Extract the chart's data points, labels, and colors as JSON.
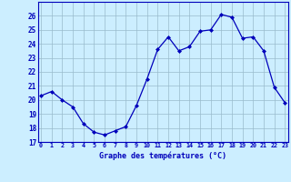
{
  "hours": [
    0,
    1,
    2,
    3,
    4,
    5,
    6,
    7,
    8,
    9,
    10,
    11,
    12,
    13,
    14,
    15,
    16,
    17,
    18,
    19,
    20,
    21,
    22,
    23
  ],
  "temperatures": [
    20.3,
    20.6,
    20.0,
    19.5,
    18.3,
    17.7,
    17.5,
    17.8,
    18.1,
    19.6,
    21.5,
    23.6,
    24.5,
    23.5,
    23.8,
    24.9,
    25.0,
    26.1,
    25.9,
    24.4,
    24.5,
    23.5,
    20.9,
    19.8
  ],
  "line_color": "#0000bb",
  "marker_color": "#0000bb",
  "bg_color": "#cceeff",
  "grid_color": "#99bbcc",
  "axis_label_color": "#0000bb",
  "tick_color": "#0000bb",
  "xlabel": "Graphe des températures (°C)",
  "ylim": [
    17,
    27
  ],
  "yticks": [
    17,
    18,
    19,
    20,
    21,
    22,
    23,
    24,
    25,
    26
  ],
  "xticks": [
    0,
    1,
    2,
    3,
    4,
    5,
    6,
    7,
    8,
    9,
    10,
    11,
    12,
    13,
    14,
    15,
    16,
    17,
    18,
    19,
    20,
    21,
    22,
    23
  ],
  "xlim": [
    -0.3,
    23.3
  ]
}
